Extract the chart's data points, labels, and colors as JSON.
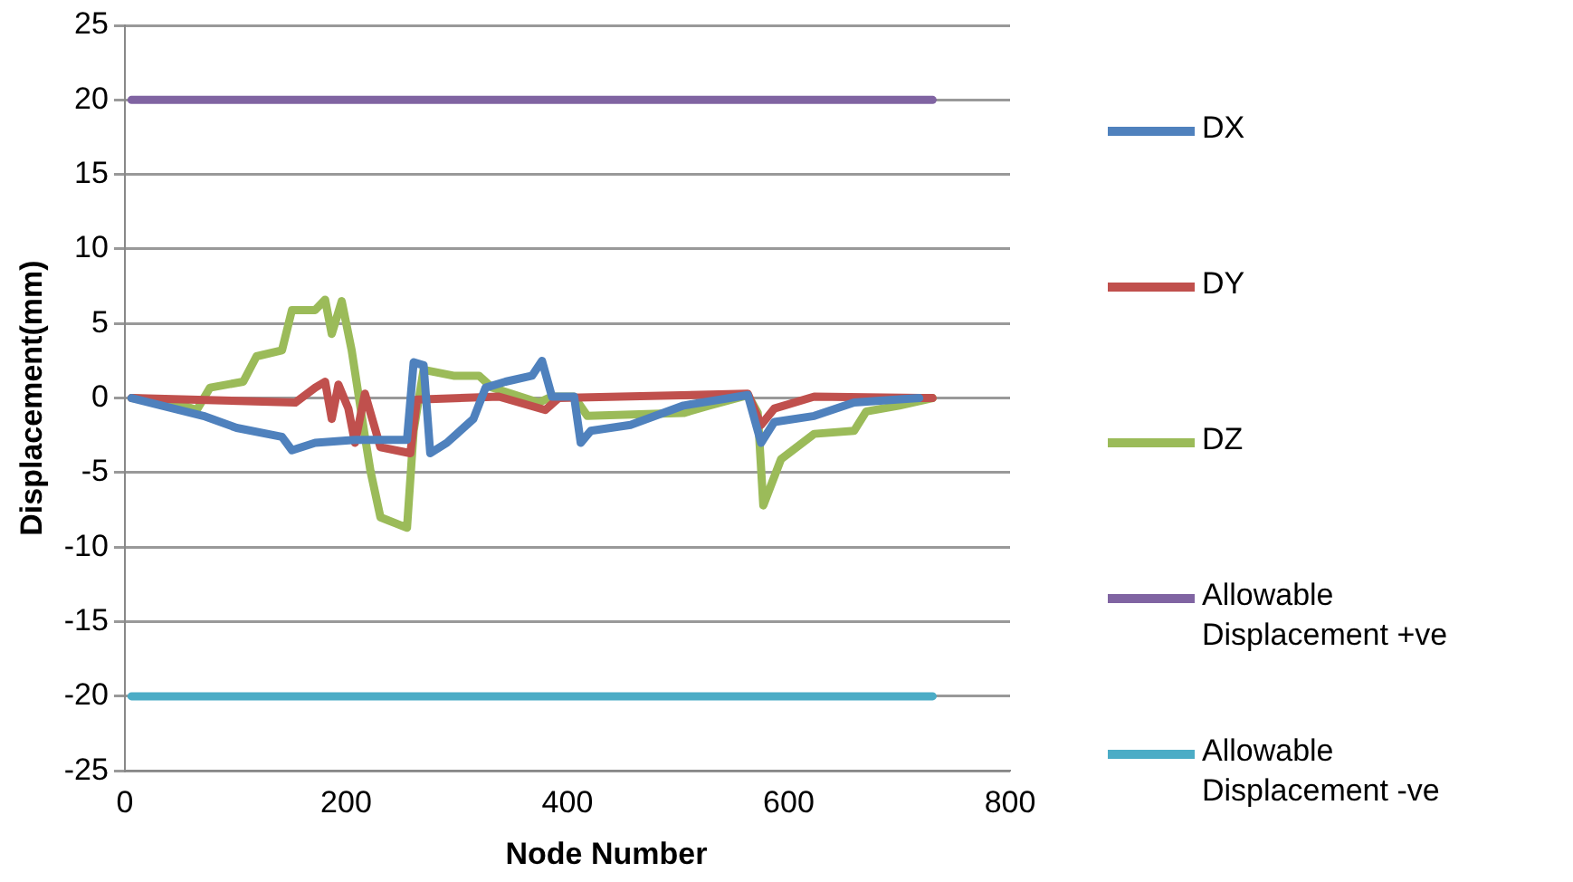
{
  "chart_data": {
    "type": "line",
    "xlabel": "Node Number",
    "ylabel": "Displacement(mm)",
    "xlim": [
      0,
      800
    ],
    "xticks": [
      0,
      200,
      400,
      600,
      800
    ],
    "ylim": [
      -25,
      25
    ],
    "yticks": [
      -25,
      -20,
      -15,
      -10,
      -5,
      0,
      5,
      10,
      15,
      20,
      25
    ],
    "grid": "y",
    "legend": "right",
    "marker": "none",
    "line_style": "solid",
    "series": [
      {
        "name": "DX",
        "color": "#4f81bd",
        "x": [
          6,
          71,
          101,
          142,
          151,
          172,
          208,
          255,
          261,
          270,
          276,
          291,
          315,
          326,
          344,
          368,
          377,
          386,
          406,
          412,
          421,
          457,
          505,
          563,
          575,
          587,
          623,
          659,
          718
        ],
        "values": [
          0,
          -1.2,
          -2,
          -2.6,
          -3.5,
          -3,
          -2.8,
          -2.8,
          2.4,
          2.2,
          -3.7,
          -3,
          -1.4,
          0.7,
          1.1,
          1.5,
          2.5,
          0.1,
          0.1,
          -3,
          -2.2,
          -1.8,
          -0.5,
          0.2,
          -3,
          -1.6,
          -1.2,
          -0.3,
          0
        ]
      },
      {
        "name": "DY",
        "color": "#c0504d",
        "x": [
          6,
          154,
          172,
          181,
          187,
          193,
          202,
          208,
          217,
          231,
          258,
          264,
          338,
          380,
          392,
          563,
          575,
          587,
          623,
          730
        ],
        "values": [
          0,
          -0.3,
          0.7,
          1.1,
          -1.4,
          0.9,
          -0.7,
          -3,
          0.3,
          -3.3,
          -3.7,
          -0.1,
          0.1,
          -0.8,
          0,
          0.3,
          -1.8,
          -0.7,
          0.1,
          0
        ]
      },
      {
        "name": "DZ",
        "color": "#9bbb59",
        "x": [
          6,
          41,
          65,
          77,
          107,
          119,
          142,
          151,
          172,
          181,
          187,
          196,
          205,
          217,
          222,
          231,
          255,
          261,
          270,
          297,
          320,
          332,
          374,
          386,
          406,
          418,
          505,
          528,
          563,
          572,
          577,
          593,
          623,
          659,
          670,
          700,
          730
        ],
        "values": [
          0,
          -0.2,
          -0.8,
          0.7,
          1.1,
          2.8,
          3.2,
          5.9,
          5.9,
          6.6,
          4.3,
          6.5,
          3.2,
          -2.6,
          -4.9,
          -8,
          -8.7,
          -2.2,
          1.9,
          1.5,
          1.5,
          0.7,
          -0.3,
          0.1,
          0.1,
          -1.2,
          -1,
          -0.5,
          0.2,
          -1,
          -7.2,
          -4.1,
          -2.4,
          -2.2,
          -0.9,
          -0.5,
          0
        ]
      },
      {
        "name": "Allowable Displacement +ve",
        "color": "#8064a2",
        "x": [
          6,
          730
        ],
        "values": [
          20,
          20
        ]
      },
      {
        "name": "Allowable Displacement -ve",
        "color": "#4bacc6",
        "x": [
          6,
          730
        ],
        "values": [
          -20,
          -20
        ]
      }
    ]
  }
}
